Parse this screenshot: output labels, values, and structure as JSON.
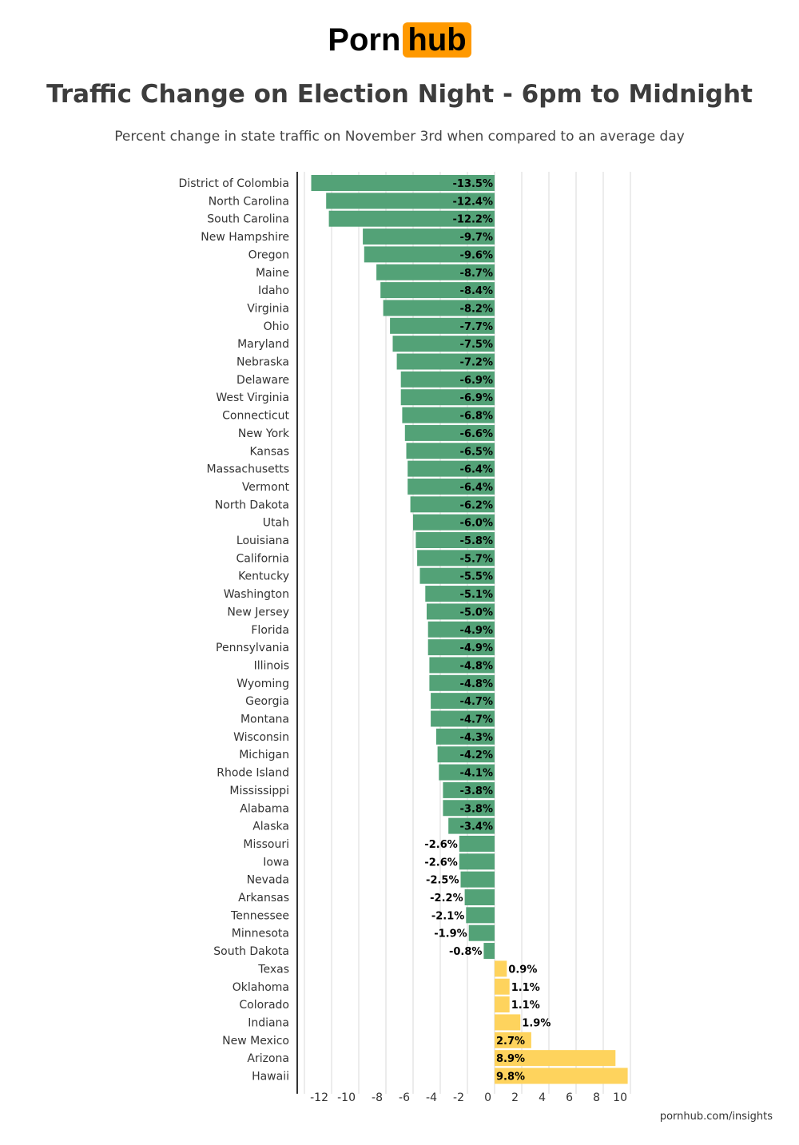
{
  "logo": {
    "part1": "Porn",
    "part2": "hub",
    "accent": "#ff9900"
  },
  "header": {
    "title": "Traffic Change on Election Night - 6pm to Midnight",
    "subtitle": "Percent change in state traffic on November 3rd when compared to an average day"
  },
  "footer": {
    "source": "pornhub.com/insights"
  },
  "chart_data": {
    "type": "bar",
    "orientation": "horizontal",
    "title": "Traffic Change on Election Night - 6pm to Midnight",
    "subtitle": "Percent change in state traffic on November 3rd when compared to an average day",
    "xlim": [
      -14,
      10.5
    ],
    "xticks": [
      -12,
      -10,
      -8,
      -6,
      -4,
      -2,
      0,
      2,
      4,
      6,
      8,
      10
    ],
    "grid": true,
    "colors": {
      "negative": "#53a277",
      "positive": "#fed35d"
    },
    "categories": [
      "District of Colombia",
      "North Carolina",
      "South Carolina",
      "New Hampshire",
      "Oregon",
      "Maine",
      "Idaho",
      "Virginia",
      "Ohio",
      "Maryland",
      "Nebraska",
      "Delaware",
      "West Virginia",
      "Connecticut",
      "New York",
      "Kansas",
      "Massachusetts",
      "Vermont",
      "North Dakota",
      "Utah",
      "Louisiana",
      "California",
      "Kentucky",
      "Washington",
      "New Jersey",
      "Florida",
      "Pennsylvania",
      "Illinois",
      "Wyoming",
      "Georgia",
      "Montana",
      "Wisconsin",
      "Michigan",
      "Rhode Island",
      "Mississippi",
      "Alabama",
      "Alaska",
      "Missouri",
      "Iowa",
      "Nevada",
      "Arkansas",
      "Tennessee",
      "Minnesota",
      "South Dakota",
      "Texas",
      "Oklahoma",
      "Colorado",
      "Indiana",
      "New Mexico",
      "Arizona",
      "Hawaii"
    ],
    "values": [
      -13.5,
      -12.4,
      -12.2,
      -9.7,
      -9.6,
      -8.7,
      -8.4,
      -8.2,
      -7.7,
      -7.5,
      -7.2,
      -6.9,
      -6.9,
      -6.8,
      -6.6,
      -6.5,
      -6.4,
      -6.4,
      -6.2,
      -6.0,
      -5.8,
      -5.7,
      -5.5,
      -5.1,
      -5.0,
      -4.9,
      -4.9,
      -4.8,
      -4.8,
      -4.7,
      -4.7,
      -4.3,
      -4.2,
      -4.1,
      -3.8,
      -3.8,
      -3.4,
      -2.6,
      -2.6,
      -2.5,
      -2.2,
      -2.1,
      -1.9,
      -0.8,
      0.9,
      1.1,
      1.1,
      1.9,
      2.7,
      8.9,
      9.8
    ],
    "data_labels": [
      "-13.5%",
      "-12.4%",
      "-12.2%",
      "-9.7%",
      "-9.6%",
      "-8.7%",
      "-8.4%",
      "-8.2%",
      "-7.7%",
      "-7.5%",
      "-7.2%",
      "-6.9%",
      "-6.9%",
      "-6.8%",
      "-6.6%",
      "-6.5%",
      "-6.4%",
      "-6.4%",
      "-6.2%",
      "-6.0%",
      "-5.8%",
      "-5.7%",
      "-5.5%",
      "-5.1%",
      "-5.0%",
      "-4.9%",
      "-4.9%",
      "-4.8%",
      "-4.8%",
      "-4.7%",
      "-4.7%",
      "-4.3%",
      "-4.2%",
      "-4.1%",
      "-3.8%",
      "-3.8%",
      "-3.4%",
      "-2.6%",
      "-2.6%",
      "-2.5%",
      "-2.2%",
      "-2.1%",
      "-1.9%",
      "-0.8%",
      "0.9%",
      "1.1%",
      "1.1%",
      "1.9%",
      "2.7%",
      "8.9%",
      "9.8%"
    ]
  }
}
